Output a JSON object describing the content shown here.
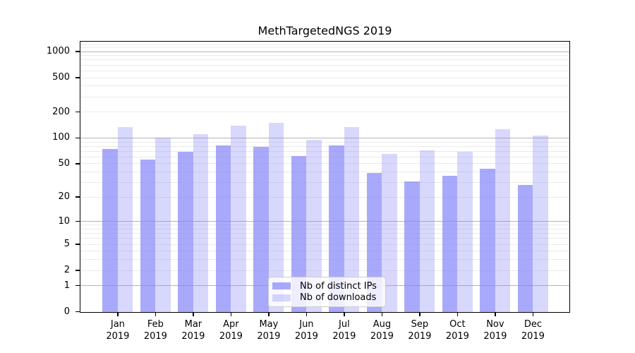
{
  "title": "MethTargetedNGS 2019",
  "legend": {
    "entries": [
      {
        "label": "Nb of distinct IPs"
      },
      {
        "label": "Nb of downloads"
      }
    ]
  },
  "colors": {
    "bar_base": "#8888fa",
    "ips_composite": "#a9a9f9",
    "downloads_composite": "#d9d9f9",
    "major_grid": "#b4b4b4",
    "minor_grid": "#eaeaea",
    "axis": "#000000"
  },
  "chart_data": {
    "type": "bar",
    "title": "MethTargetedNGS 2019",
    "categories": [
      "Jan 2019",
      "Feb 2019",
      "Mar 2019",
      "Apr 2019",
      "May 2019",
      "Jun 2019",
      "Jul 2019",
      "Aug 2019",
      "Sep 2019",
      "Oct 2019",
      "Nov 2019",
      "Dec 2019"
    ],
    "series": [
      {
        "name": "Nb of distinct IPs",
        "color": "#8888fa",
        "alpha": 0.72,
        "values": [
          75,
          56,
          70,
          83,
          80,
          62,
          82,
          39,
          31,
          36,
          44,
          28
        ]
      },
      {
        "name": "Nb of downloads",
        "color": "#8888fa",
        "alpha": 0.33,
        "values": [
          135,
          102,
          112,
          140,
          150,
          95,
          135,
          66,
          72,
          70,
          128,
          107
        ]
      }
    ],
    "xlabel": "",
    "ylabel": "",
    "yscale": "log1p",
    "ylim": [
      0,
      1290
    ],
    "yticks": [
      0,
      1,
      2,
      5,
      10,
      20,
      50,
      100,
      200,
      500,
      1000
    ],
    "major_grid_values": [
      1,
      10,
      100,
      1000
    ],
    "grid": true,
    "legend_position": "lower center"
  }
}
